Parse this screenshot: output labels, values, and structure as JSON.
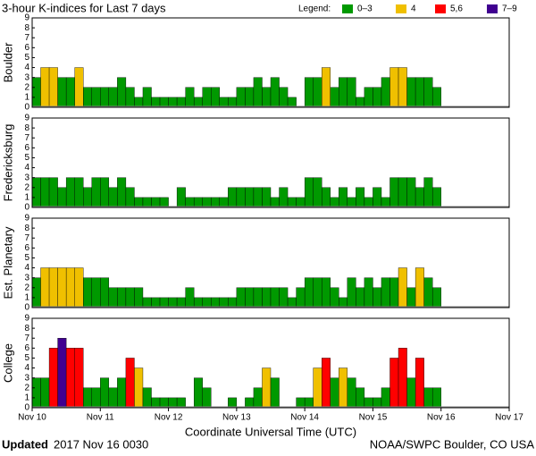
{
  "title": "3-hour K-indices for Last 7 days",
  "legend": {
    "title": "Legend:",
    "items": [
      {
        "label": "0–3",
        "color": "#009900",
        "range": [
          0,
          3
        ]
      },
      {
        "label": "4",
        "color": "#f0c000",
        "range": [
          4,
          4
        ]
      },
      {
        "label": "5,6",
        "color": "#ff0000",
        "range": [
          5,
          6
        ]
      },
      {
        "label": "7–9",
        "color": "#400090",
        "range": [
          7,
          9
        ]
      }
    ]
  },
  "footer": {
    "bold": "Updated",
    "left": "2017 Nov 16 0030",
    "right": "NOAA/SWPC Boulder, CO USA"
  },
  "chart_data": [
    {
      "type": "bar",
      "ylabel": "Boulder",
      "xlim": [
        0,
        56
      ],
      "ylim": [
        0,
        9
      ],
      "yticks": [
        0,
        1,
        2,
        3,
        4,
        5,
        6,
        7,
        8,
        9
      ],
      "values": [
        3,
        4,
        4,
        3,
        3,
        4,
        2,
        2,
        2,
        2,
        3,
        2,
        1,
        2,
        1,
        1,
        1,
        1,
        2,
        1,
        2,
        2,
        1,
        1,
        2,
        2,
        3,
        2,
        3,
        2,
        1,
        0,
        3,
        3,
        4,
        2,
        3,
        3,
        1,
        2,
        2,
        3,
        4,
        4,
        3,
        3,
        3,
        2,
        null,
        null,
        null,
        null,
        null,
        null,
        null,
        null
      ]
    },
    {
      "type": "bar",
      "ylabel": "Fredericksburg",
      "xlim": [
        0,
        56
      ],
      "ylim": [
        0,
        9
      ],
      "yticks": [
        0,
        1,
        2,
        3,
        4,
        5,
        6,
        7,
        8,
        9
      ],
      "values": [
        3,
        3,
        3,
        2,
        3,
        3,
        2,
        3,
        3,
        2,
        3,
        2,
        1,
        1,
        1,
        1,
        0,
        2,
        1,
        1,
        1,
        1,
        1,
        2,
        2,
        2,
        2,
        2,
        1,
        2,
        1,
        1,
        3,
        3,
        2,
        1,
        2,
        1,
        2,
        1,
        2,
        1,
        3,
        3,
        3,
        2,
        3,
        2,
        null,
        null,
        null,
        null,
        null,
        null,
        null,
        null
      ]
    },
    {
      "type": "bar",
      "ylabel": "Est. Planetary",
      "xlim": [
        0,
        56
      ],
      "ylim": [
        0,
        9
      ],
      "yticks": [
        0,
        1,
        2,
        3,
        4,
        5,
        6,
        7,
        8,
        9
      ],
      "values": [
        3,
        4,
        4,
        4,
        4,
        4,
        3,
        3,
        3,
        2,
        2,
        2,
        2,
        1,
        1,
        1,
        1,
        1,
        2,
        1,
        1,
        1,
        1,
        1,
        2,
        2,
        2,
        2,
        2,
        2,
        1,
        2,
        3,
        3,
        3,
        2,
        1,
        3,
        2,
        3,
        2,
        3,
        3,
        4,
        2,
        4,
        3,
        2,
        null,
        null,
        null,
        null,
        null,
        null,
        null,
        null
      ]
    },
    {
      "type": "bar",
      "ylabel": "College",
      "xlim": [
        0,
        56
      ],
      "ylim": [
        0,
        9
      ],
      "yticks": [
        0,
        1,
        2,
        3,
        4,
        5,
        6,
        7,
        8,
        9
      ],
      "xlabel": "Coordinate Universal Time (UTC)",
      "xticks": [
        {
          "value": 0,
          "label": "Nov 10"
        },
        {
          "value": 8,
          "label": "Nov 11"
        },
        {
          "value": 16,
          "label": "Nov 12"
        },
        {
          "value": 24,
          "label": "Nov 13"
        },
        {
          "value": 32,
          "label": "Nov 14"
        },
        {
          "value": 40,
          "label": "Nov 15"
        },
        {
          "value": 48,
          "label": "Nov 16"
        },
        {
          "value": 56,
          "label": "Nov 17"
        }
      ],
      "values": [
        3,
        3,
        6,
        7,
        6,
        6,
        2,
        2,
        3,
        2,
        3,
        5,
        4,
        2,
        1,
        1,
        1,
        1,
        0,
        3,
        2,
        0,
        0,
        1,
        0,
        1,
        2,
        4,
        3,
        0,
        0,
        1,
        1,
        4,
        5,
        3,
        4,
        3,
        2,
        1,
        1,
        2,
        5,
        6,
        3,
        5,
        2,
        2,
        null,
        null,
        null,
        null,
        null,
        null,
        null,
        null
      ]
    }
  ]
}
